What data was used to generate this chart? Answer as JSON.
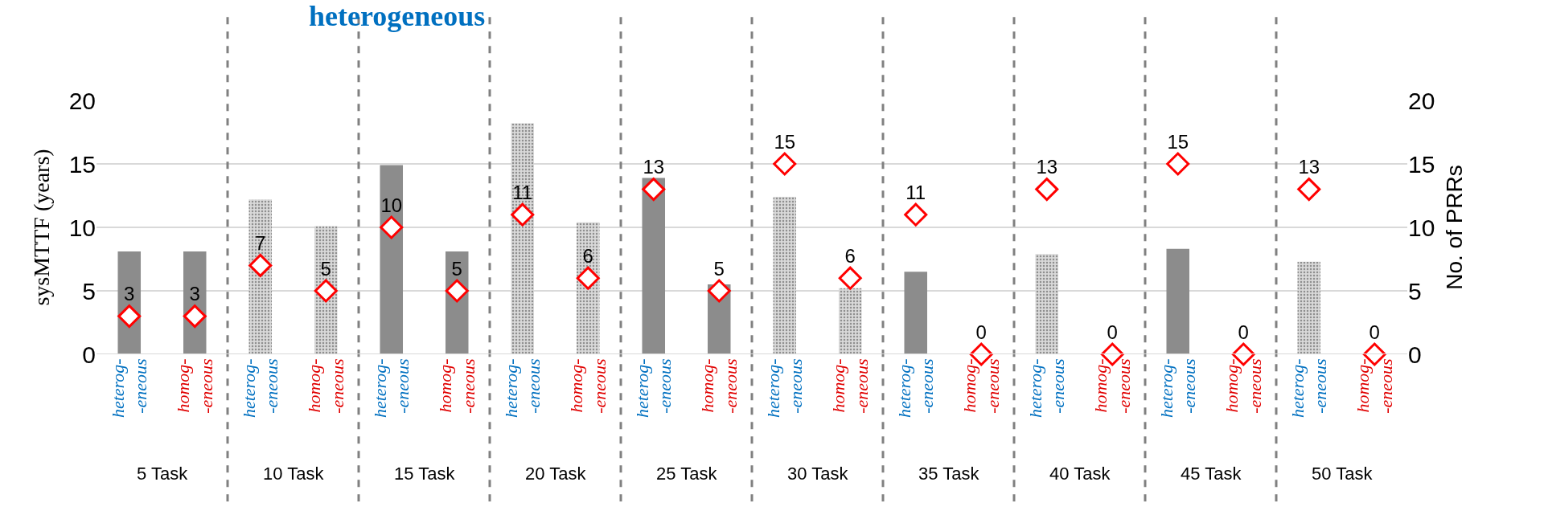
{
  "chart_data": {
    "type": "bar",
    "title": "heterogeneous",
    "ylabel": "sysMTTF (years)",
    "y2label": "No. of PRRs",
    "categories": [
      "heterog- -eneous",
      "homog- -eneous",
      "heterog- -eneous",
      "homog- -eneous",
      "heterog- -eneous",
      "homog- -eneous",
      "heterog- -eneous",
      "homog- -eneous",
      "heterog- -eneous",
      "homog- -eneous",
      "heterog- -eneous",
      "homog- -eneous",
      "heterog- -eneous",
      "homog- -eneous",
      "heterog- -eneous",
      "homog- -eneous",
      "heterog- -eneous",
      "homog- -eneous",
      "heterog- -eneous",
      "homog- -eneous"
    ],
    "series": [
      {
        "values": [
          8.1,
          8.1,
          12.2,
          10.1,
          14.9,
          8.1,
          18.2,
          10.4,
          13.9,
          5.5,
          12.4,
          5.2,
          6.5,
          0,
          7.9,
          0,
          8.3,
          0,
          7.3,
          0
        ],
        "colors": [
          "#8c8c8c",
          "#8c8c8c",
          "#d9d9d9",
          "#d9d9d9",
          "#8c8c8c",
          "#8c8c8c",
          "#d9d9d9",
          "#d9d9d9",
          "#8c8c8c",
          "#8c8c8c",
          "#d9d9d9",
          "#d9d9d9",
          "#8c8c8c",
          "#8c8c8c",
          "#d9d9d9",
          "#d9d9d9",
          "#8c8c8c",
          "#8c8c8c",
          "#d9d9d9",
          "#d9d9d9"
        ]
      },
      {
        "type": "scatter",
        "axis": "y2",
        "color": "#ff0000",
        "marker": "diamond",
        "values": [
          3,
          3,
          7,
          5,
          10,
          5,
          11,
          6,
          13,
          5,
          15,
          6,
          11,
          0,
          13,
          0,
          15,
          0,
          13,
          0
        ],
        "value_labels": [
          "3",
          "3",
          "7",
          "5",
          "10",
          "5",
          "11",
          "6",
          "13",
          "5",
          "15",
          "6",
          "11",
          "0",
          "13",
          "0",
          "15",
          "0",
          "13",
          "0"
        ]
      }
    ],
    "ylim": [
      0,
      20
    ],
    "yticks": [
      0,
      5,
      10,
      15,
      20
    ],
    "y2lim": [
      0,
      20
    ],
    "y2ticks": [
      0,
      5,
      10,
      15,
      20
    ],
    "grid": "y",
    "annotations": [
      "5 Task",
      "10 Task",
      "15 Task",
      "20 Task",
      "25 Task",
      "30 Task",
      "35 Task",
      "40 Task",
      "45 Task",
      "50 Task"
    ]
  }
}
